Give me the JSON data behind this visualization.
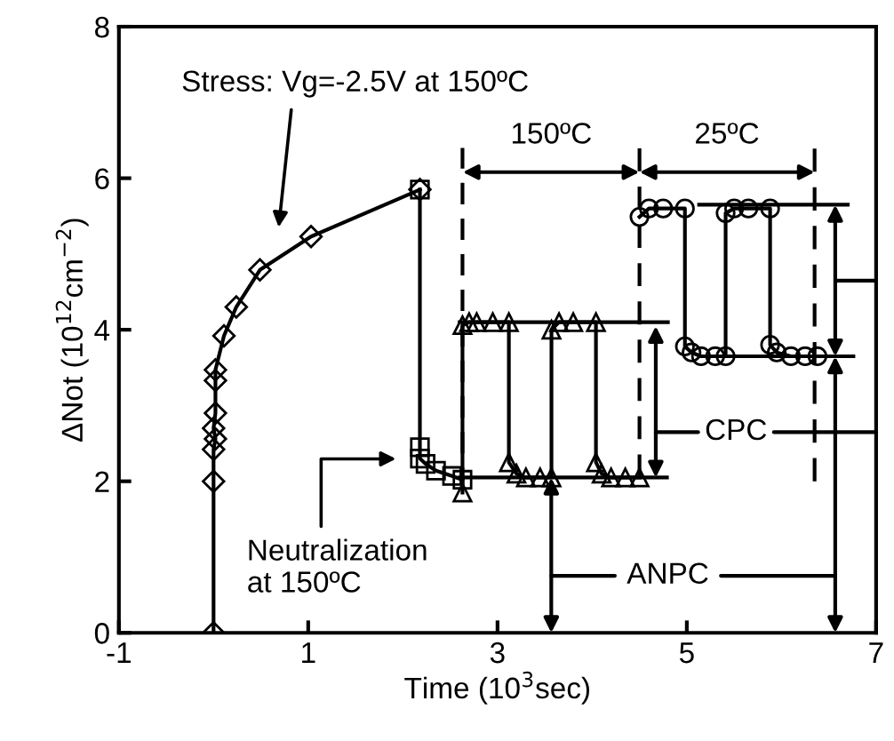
{
  "chart_data": {
    "type": "line",
    "xlabel": "Time (10$^{3}$sec)",
    "ylabel": "ΔNot (10$^{12}$cm$^{−2}$)",
    "xlim": [
      -1,
      7
    ],
    "ylim": [
      0,
      8
    ],
    "xticks": [
      -1,
      1,
      3,
      5,
      7
    ],
    "yticks": [
      0,
      2,
      4,
      6,
      8
    ],
    "grid": false,
    "series": [
      {
        "color": "#000000",
        "marker": "diamond",
        "x": [
          0,
          0,
          0,
          0.02,
          0,
          0.02,
          0.02,
          0.02,
          0.11,
          0.24,
          0.49,
          1.03,
          2.18
        ],
        "values": [
          0,
          2.0,
          2.42,
          2.56,
          2.7,
          2.9,
          3.33,
          3.47,
          3.92,
          4.3,
          4.79,
          5.23,
          5.85
        ]
      },
      {
        "color": "#000000",
        "marker": "square",
        "x": [
          2.18,
          2.18,
          2.18,
          2.24,
          2.35,
          2.52,
          2.63
        ],
        "values": [
          5.85,
          2.45,
          2.3,
          2.23,
          2.14,
          2.07,
          2.02
        ]
      },
      {
        "color": "#000000",
        "marker": "triangle",
        "x": [
          2.63,
          2.63,
          2.7,
          2.78,
          2.95,
          3.12,
          3.12,
          3.2,
          3.3,
          3.45,
          3.57,
          3.57,
          3.65,
          3.8,
          4.04,
          4.04,
          4.1,
          4.2,
          4.35,
          4.5
        ],
        "values": [
          1.85,
          4.06,
          4.1,
          4.1,
          4.1,
          4.1,
          2.25,
          2.1,
          2.05,
          2.05,
          2.05,
          4.0,
          4.1,
          4.1,
          4.1,
          2.25,
          2.1,
          2.05,
          2.05,
          2.05
        ]
      },
      {
        "color": "#000000",
        "marker": "circle",
        "x": [
          4.5,
          4.6,
          4.75,
          4.98,
          4.98,
          5.05,
          5.15,
          5.3,
          5.41,
          5.41,
          5.5,
          5.65,
          5.88,
          5.88,
          5.95,
          6.1,
          6.25,
          6.38
        ],
        "values": [
          5.49,
          5.6,
          5.6,
          5.6,
          3.78,
          3.7,
          3.65,
          3.65,
          3.65,
          5.54,
          5.6,
          5.6,
          5.6,
          3.8,
          3.7,
          3.65,
          3.65,
          3.65
        ]
      },
      {
        "color": "#000000",
        "marker": "none",
        "x": [
          2.6,
          4.8
        ],
        "values": [
          4.1,
          4.1
        ]
      },
      {
        "color": "#000000",
        "marker": "none",
        "x": [
          2.6,
          4.79
        ],
        "values": [
          2.05,
          2.05
        ]
      },
      {
        "color": "#000000",
        "marker": "none",
        "x": [
          5.13,
          6.7
        ],
        "values": [
          5.65,
          5.65
        ]
      },
      {
        "color": "#000000",
        "marker": "none",
        "x": [
          5.13,
          6.76
        ],
        "values": [
          3.65,
          3.65
        ]
      },
      {
        "color": "#000000",
        "marker": "none",
        "line_style": "dashed",
        "x": [
          2.63,
          2.63
        ],
        "values": [
          1.9,
          6.4
        ]
      },
      {
        "color": "#000000",
        "marker": "none",
        "line_style": "dashed",
        "x": [
          4.5,
          4.5
        ],
        "values": [
          2.05,
          6.4
        ]
      },
      {
        "color": "#000000",
        "marker": "none",
        "line_style": "dashed",
        "x": [
          6.35,
          6.35
        ],
        "values": [
          2.0,
          6.4
        ]
      }
    ],
    "annotations": [
      "Stress: Vg=-2.5V at 150ºC",
      "Neutralization\nat 150ºC",
      "CPC",
      "ANPC",
      "150ºC",
      "25ºC"
    ]
  }
}
